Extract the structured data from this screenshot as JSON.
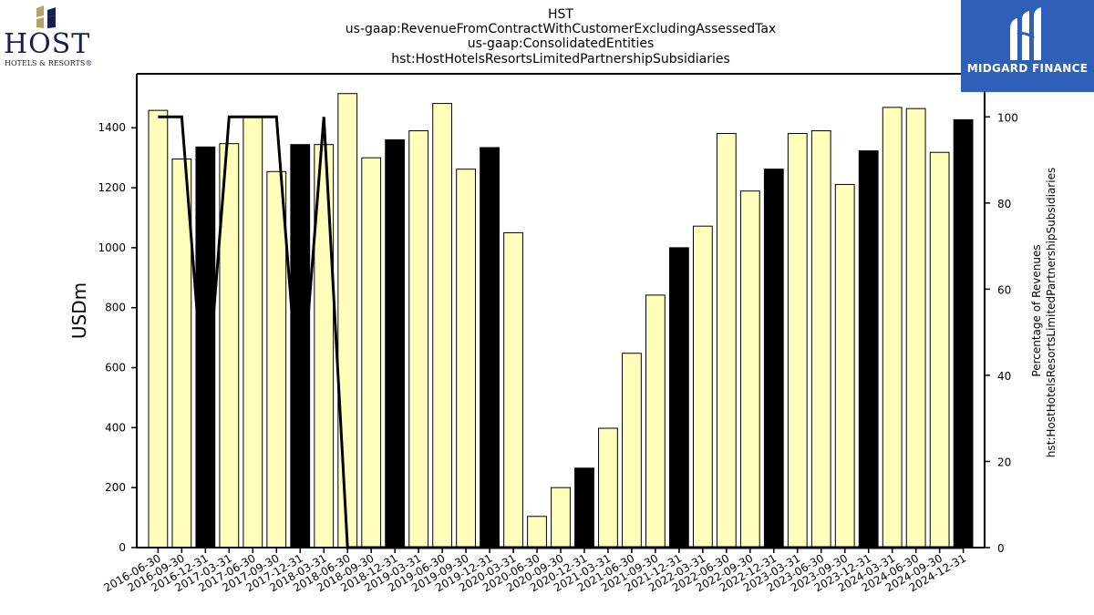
{
  "logos": {
    "host": {
      "word": "HOST",
      "sub": "HOTELS & RESORTS®"
    },
    "midgard": {
      "word": "MIDGARD FINANCE"
    }
  },
  "colors": {
    "bar_default": "#ffffbb",
    "bar_highlight": "#000000",
    "line": "#000000"
  },
  "chart_data": {
    "type": "bar",
    "title_lines": [
      "HST",
      "us-gaap:RevenueFromContractWithCustomerExcludingAssessedTax",
      "us-gaap:ConsolidatedEntities",
      "hst:HostHotelsResortsLimitedPartnershipSubsidiaries"
    ],
    "ylabel": "USDm",
    "ylabel_right": [
      "Percentage of Revenues",
      "hst:HostHotelsResortsLimitedPartnershipSubsidiaries"
    ],
    "ylim": [
      0,
      1580
    ],
    "y_ticks": [
      0,
      200,
      400,
      600,
      800,
      1000,
      1200,
      1400
    ],
    "ylim_right": [
      0,
      110
    ],
    "y2_ticks": [
      0,
      20,
      40,
      60,
      80,
      100
    ],
    "categories": [
      "2016-06-30",
      "2016-09-30",
      "2016-12-31",
      "2017-03-31",
      "2017-06-30",
      "2017-09-30",
      "2017-12-31",
      "2018-03-31",
      "2018-06-30",
      "2018-09-30",
      "2018-12-31",
      "2019-03-31",
      "2019-06-30",
      "2019-09-30",
      "2019-12-31",
      "2020-03-31",
      "2020-06-30",
      "2020-09-30",
      "2020-12-31",
      "2021-03-31",
      "2021-06-30",
      "2021-09-30",
      "2021-12-31",
      "2022-03-31",
      "2022-06-30",
      "2022-09-30",
      "2022-12-31",
      "2023-03-31",
      "2023-06-30",
      "2023-09-30",
      "2023-12-31",
      "2024-03-31",
      "2024-06-30",
      "2024-09-30",
      "2024-12-31"
    ],
    "values": [
      1458,
      1296,
      1336,
      1347,
      1438,
      1254,
      1344,
      1344,
      1514,
      1300,
      1360,
      1390,
      1481,
      1262,
      1334,
      1050,
      104,
      200,
      265,
      398,
      648,
      842,
      1000,
      1072,
      1381,
      1189,
      1262,
      1381,
      1390,
      1211,
      1323,
      1468,
      1464,
      1318,
      1427
    ],
    "highlight": [
      false,
      false,
      true,
      false,
      false,
      false,
      true,
      false,
      false,
      false,
      true,
      false,
      false,
      false,
      true,
      false,
      false,
      false,
      true,
      false,
      false,
      false,
      true,
      false,
      false,
      false,
      true,
      false,
      false,
      false,
      true,
      false,
      false,
      false,
      true
    ],
    "line_series": {
      "values": [
        100,
        100,
        30,
        100,
        100,
        100,
        30,
        100,
        0,
        0,
        0,
        0,
        0,
        0,
        0,
        0,
        0,
        0,
        0,
        0,
        0,
        0,
        0,
        0,
        0,
        0,
        0,
        0,
        0,
        0,
        0,
        0,
        0,
        0,
        0
      ]
    },
    "grid": false,
    "legend": "none"
  }
}
